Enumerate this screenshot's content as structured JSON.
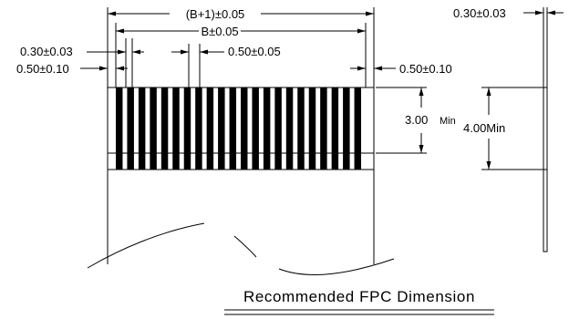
{
  "dimensions": {
    "overall_width": "(B+1)±0.05",
    "pitch_span": "B±0.05",
    "lead_width": "0.30±0.03",
    "edge_offset": "0.50±0.10",
    "pitch": "0.50±0.05",
    "right_edge_offset": "0.50±0.10",
    "exposed_length_value": "3.00",
    "exposed_length_suffix": "Min",
    "stiffener_length": "4.00Min",
    "thickness": "0.30±0.03"
  },
  "title": "Recommended  FPC  Dimension",
  "lead_count_shown": 22
}
